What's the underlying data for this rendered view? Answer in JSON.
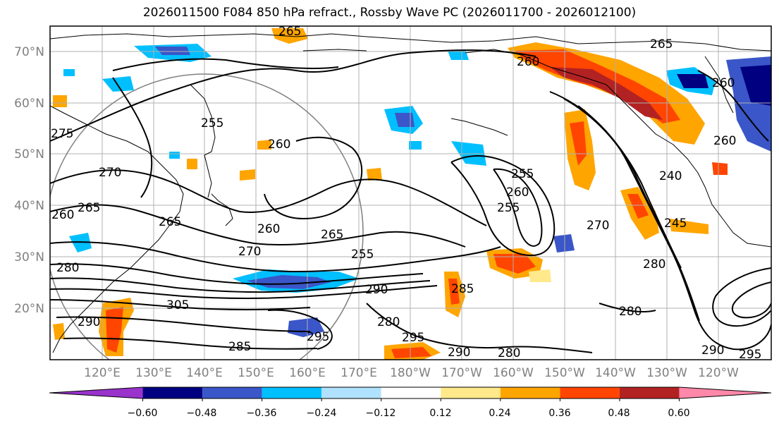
{
  "title": "2026011500 F084 850 hPa refract., Rossby Wave PC (2026011700 - 2026012100)",
  "lat_labels": [
    "70°N",
    "60°N",
    "50°N",
    "40°N",
    "30°N",
    "20°N"
  ],
  "lon_labels": [
    "120°E",
    "130°E",
    "140°E",
    "150°E",
    "160°E",
    "170°E",
    "180°W",
    "170°W",
    "160°W",
    "150°W",
    "140°W",
    "130°W",
    "120°W"
  ],
  "colorbar": {
    "colors": [
      "#9933cc",
      "#000080",
      "#3a56c8",
      "#00bfff",
      "#b0e2ff",
      "#ffffff",
      "#ffe98a",
      "#ffa500",
      "#ff4500",
      "#b22222",
      "#ff88aa"
    ],
    "tick_labels": [
      "−0.60",
      "−0.48",
      "−0.36",
      "−0.24",
      "−0.12",
      "0.12",
      "0.24",
      "0.36",
      "0.48",
      "0.60"
    ]
  },
  "contour_labels": [
    {
      "text": "265"
    },
    {
      "text": "260"
    },
    {
      "text": "265"
    },
    {
      "text": "260"
    },
    {
      "text": "255"
    },
    {
      "text": "260"
    },
    {
      "text": "275"
    },
    {
      "text": "270"
    },
    {
      "text": "260"
    },
    {
      "text": "265"
    },
    {
      "text": "260"
    },
    {
      "text": "265"
    },
    {
      "text": "270"
    },
    {
      "text": "280"
    },
    {
      "text": "290"
    },
    {
      "text": "305"
    },
    {
      "text": "295"
    },
    {
      "text": "285"
    },
    {
      "text": "280"
    },
    {
      "text": "295"
    },
    {
      "text": "290"
    },
    {
      "text": "280"
    },
    {
      "text": "255"
    },
    {
      "text": "255"
    },
    {
      "text": "260"
    },
    {
      "text": "270"
    },
    {
      "text": "245"
    },
    {
      "text": "240"
    },
    {
      "text": "260"
    },
    {
      "text": "280"
    },
    {
      "text": "280"
    },
    {
      "text": "290"
    },
    {
      "text": "295"
    },
    {
      "text": "285"
    },
    {
      "text": "265"
    },
    {
      "text": "255"
    },
    {
      "text": "290"
    }
  ]
}
